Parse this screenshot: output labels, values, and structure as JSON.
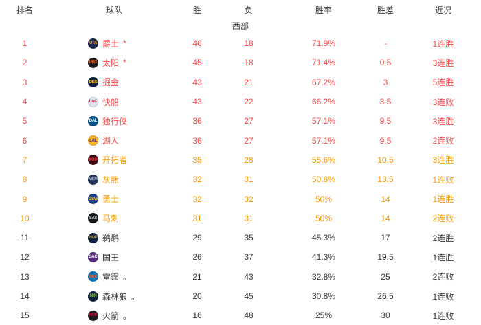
{
  "table": {
    "columns": {
      "rank": "排名",
      "team": "球队",
      "wins": "胜",
      "losses": "负",
      "win_pct": "胜率",
      "games_behind": "胜差",
      "recent": "近况"
    },
    "section": "西部",
    "colors": {
      "top6": "#ff4444",
      "playin": "#ff9900",
      "rest": "#333333"
    },
    "rows": [
      {
        "rank": "1",
        "name": "爵士",
        "mark": "*",
        "wins": "46",
        "losses": "18",
        "pct": "71.9%",
        "gb": "-",
        "streak": "1连胜",
        "tier": "top6",
        "logo": {
          "abbr": "UTA",
          "bg": "#1d2951",
          "fg": "#f9a01b"
        }
      },
      {
        "rank": "2",
        "name": "太阳",
        "mark": "*",
        "wins": "45",
        "losses": "18",
        "pct": "71.4%",
        "gb": "0.5",
        "streak": "3连胜",
        "tier": "top6",
        "logo": {
          "abbr": "PHX",
          "bg": "#1b1b1b",
          "fg": "#e56020"
        }
      },
      {
        "rank": "3",
        "name": "掘金",
        "mark": "",
        "wins": "43",
        "losses": "21",
        "pct": "67.2%",
        "gb": "3",
        "streak": "5连胜",
        "tier": "top6",
        "logo": {
          "abbr": "DEN",
          "bg": "#0e2240",
          "fg": "#fec524"
        }
      },
      {
        "rank": "4",
        "name": "快船",
        "mark": "",
        "wins": "43",
        "losses": "22",
        "pct": "66.2%",
        "gb": "3.5",
        "streak": "3连败",
        "tier": "top6",
        "logo": {
          "abbr": "LAC",
          "bg": "#dce7f2",
          "fg": "#c8102e"
        }
      },
      {
        "rank": "5",
        "name": "独行侠",
        "mark": "",
        "wins": "36",
        "losses": "27",
        "pct": "57.1%",
        "gb": "9.5",
        "streak": "3连胜",
        "tier": "top6",
        "logo": {
          "abbr": "DAL",
          "bg": "#00538c",
          "fg": "#ffffff"
        }
      },
      {
        "rank": "6",
        "name": "湖人",
        "mark": "",
        "wins": "36",
        "losses": "27",
        "pct": "57.1%",
        "gb": "9.5",
        "streak": "2连败",
        "tier": "top6",
        "logo": {
          "abbr": "LAL",
          "bg": "#fdb927",
          "fg": "#552583"
        }
      },
      {
        "rank": "7",
        "name": "开拓者",
        "mark": "",
        "wins": "35",
        "losses": "28",
        "pct": "55.6%",
        "gb": "10.5",
        "streak": "3连胜",
        "tier": "playin",
        "logo": {
          "abbr": "POR",
          "bg": "#3d0c11",
          "fg": "#e03a3e"
        }
      },
      {
        "rank": "8",
        "name": "灰熊",
        "mark": "",
        "wins": "32",
        "losses": "31",
        "pct": "50.8%",
        "gb": "13.5",
        "streak": "1连败",
        "tier": "playin",
        "logo": {
          "abbr": "MEM",
          "bg": "#23375b",
          "fg": "#9ea8c3"
        }
      },
      {
        "rank": "9",
        "name": "勇士",
        "mark": "",
        "wins": "32",
        "losses": "32",
        "pct": "50%",
        "gb": "14",
        "streak": "1连胜",
        "tier": "playin",
        "logo": {
          "abbr": "GSW",
          "bg": "#1d428a",
          "fg": "#ffc72c"
        }
      },
      {
        "rank": "10",
        "name": "马刺",
        "mark": "",
        "wins": "31",
        "losses": "31",
        "pct": "50%",
        "gb": "14",
        "streak": "2连败",
        "tier": "playin",
        "logo": {
          "abbr": "SAS",
          "bg": "#151515",
          "fg": "#c4ced4"
        }
      },
      {
        "rank": "11",
        "name": "鹈鹕",
        "mark": "",
        "wins": "29",
        "losses": "35",
        "pct": "45.3%",
        "gb": "17",
        "streak": "2连胜",
        "tier": "rest",
        "logo": {
          "abbr": "NOP",
          "bg": "#0c2340",
          "fg": "#b4975a"
        }
      },
      {
        "rank": "12",
        "name": "国王",
        "mark": "",
        "wins": "26",
        "losses": "37",
        "pct": "41.3%",
        "gb": "19.5",
        "streak": "1连胜",
        "tier": "rest",
        "logo": {
          "abbr": "SAC",
          "bg": "#5a2d81",
          "fg": "#ffffff"
        }
      },
      {
        "rank": "13",
        "name": "雷霆",
        "mark": "。",
        "wins": "21",
        "losses": "43",
        "pct": "32.8%",
        "gb": "25",
        "streak": "2连败",
        "tier": "rest",
        "logo": {
          "abbr": "OKC",
          "bg": "#007ac1",
          "fg": "#f05133"
        }
      },
      {
        "rank": "14",
        "name": "森林狼",
        "mark": "。",
        "wins": "20",
        "losses": "45",
        "pct": "30.8%",
        "gb": "26.5",
        "streak": "1连败",
        "tier": "rest",
        "logo": {
          "abbr": "MIN",
          "bg": "#0c2340",
          "fg": "#78be20"
        }
      },
      {
        "rank": "15",
        "name": "火箭",
        "mark": "。",
        "wins": "16",
        "losses": "48",
        "pct": "25%",
        "gb": "30",
        "streak": "1连败",
        "tier": "rest",
        "logo": {
          "abbr": "HOU",
          "bg": "#1a1a1a",
          "fg": "#ce1141"
        }
      }
    ]
  }
}
